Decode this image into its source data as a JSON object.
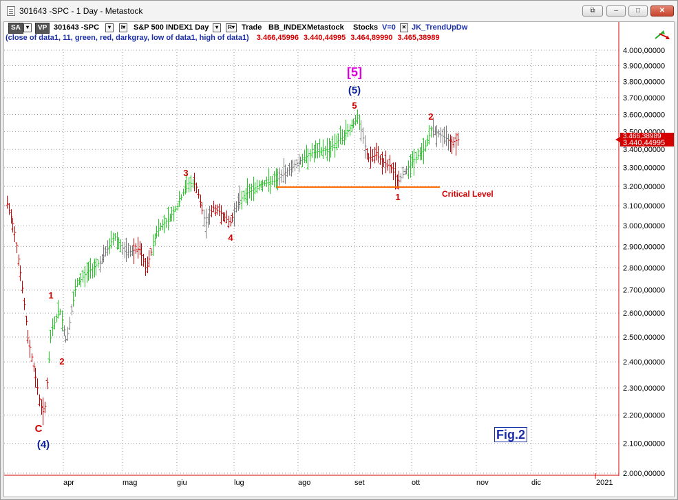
{
  "window": {
    "title": "301643 -SPC - 1 Day - Metastock",
    "buttons": {
      "restore": "⧉",
      "minimize": "‒",
      "maximize": "□",
      "close": "✕"
    }
  },
  "toolbar": {
    "sa": "SA",
    "vp": "VP",
    "symbol": "301643 -SPC",
    "indexname": "S&P 500 INDEX",
    "period": "1 Day",
    "trade": "Trade",
    "bbindex": "BB_INDEX",
    "source": "Metastock",
    "category": "Stocks",
    "version": "V=0",
    "expert": "JK_TrendUpDw"
  },
  "indicator": {
    "desc": "(close of data1,  11,  green,  red,  darkgray,  low of data1,  high of data1)",
    "values": [
      "3.466,45996",
      "3.440,44995",
      "3.464,89990",
      "3.465,38989"
    ]
  },
  "price_axis": {
    "labels": [
      "4.000,00000",
      "3.900,00000",
      "3.800,00000",
      "3.700,00000",
      "3.600,00000",
      "3.500,00000",
      "3.400,00000",
      "3.300,00000",
      "3.200,00000",
      "3.100,00000",
      "3.000,00000",
      "2.900,00000",
      "2.800,00000",
      "2.700,00000",
      "2.600,00000",
      "2.500,00000",
      "2.400,00000",
      "2.300,00000",
      "2.200,00000",
      "2.100,00000",
      "2.000,00000"
    ],
    "last_price_top": "3.466,38989",
    "last_price": "3.440,44995"
  },
  "time_axis": {
    "labels": [
      "apr",
      "mag",
      "giu",
      "lug",
      "ago",
      "set",
      "ott",
      "nov",
      "dic",
      "2021"
    ]
  },
  "annotations": {
    "w5_big": "[5]",
    "w5_paren": "(5)",
    "w5_red": "5",
    "w3": "3",
    "w4": "4",
    "w1_apr": "1",
    "w2_apr": "2",
    "c": "C",
    "w4_paren": "(4)",
    "w2_oct": "2",
    "w1_sep": "1",
    "critical": "Critical Level",
    "fig": "Fig.2"
  },
  "colors": {
    "up": "#22cc22",
    "down": "#cc0000",
    "neutral": "#7a7a7a",
    "wave_blue": "#0a1f99",
    "wave_red": "#d40000",
    "wave_magenta": "#e000e0",
    "critical_line": "#ff6a00"
  }
}
